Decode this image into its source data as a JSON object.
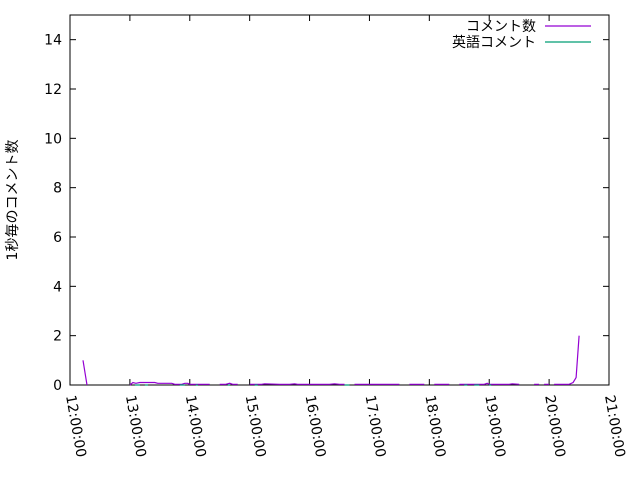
{
  "chart_data": {
    "type": "line",
    "title": "",
    "xlabel": "",
    "ylabel": "1秒毎のコメント数",
    "xlim": [
      "12:00:00",
      "21:00:00"
    ],
    "ylim": [
      0,
      15
    ],
    "xticks": [
      "12:00:00",
      "13:00:00",
      "14:00:00",
      "15:00:00",
      "16:00:00",
      "17:00:00",
      "18:00:00",
      "19:00:00",
      "20:00:00",
      "21:00:00"
    ],
    "yticks": [
      "0",
      "2",
      "4",
      "6",
      "8",
      "10",
      "12",
      "14"
    ],
    "grid": false,
    "legend": "top-right",
    "series": [
      {
        "name": "コメント数",
        "color": "#9400d3",
        "points": [
          [
            "12:13:00",
            1
          ],
          [
            "12:17:00",
            0
          ],
          null,
          [
            "13:00:00",
            0
          ],
          [
            "13:03:00",
            0.1
          ],
          [
            "13:06:00",
            0.07
          ],
          [
            "13:10:00",
            0.1
          ],
          [
            "13:25:00",
            0.1
          ],
          [
            "13:28:00",
            0.07
          ],
          [
            "13:42:00",
            0.07
          ],
          [
            "13:45:00",
            0.03
          ],
          [
            "13:52:00",
            0.03
          ],
          [
            "13:55:00",
            0.07
          ],
          [
            "13:58:00",
            0.07
          ],
          [
            "14:00:00",
            0.03
          ],
          [
            "14:20:00",
            0.03
          ],
          null,
          [
            "14:30:00",
            0.03
          ],
          [
            "14:36:00",
            0.03
          ],
          [
            "14:40:00",
            0.07
          ],
          [
            "14:43:00",
            0.03
          ],
          [
            "14:48:00",
            0.03
          ],
          null,
          [
            "15:00:00",
            0.03
          ],
          [
            "15:12:00",
            0.03
          ],
          [
            "15:15:00",
            0.05
          ],
          [
            "15:30:00",
            0.03
          ],
          [
            "15:40:00",
            0.03
          ],
          [
            "15:45:00",
            0.05
          ],
          [
            "15:48:00",
            0.03
          ],
          [
            "16:10:00",
            0.03
          ],
          [
            "16:20:00",
            0.03
          ],
          [
            "16:25:00",
            0.05
          ],
          [
            "16:30:00",
            0.03
          ],
          [
            "16:35:00",
            0.03
          ],
          null,
          [
            "16:45:00",
            0.03
          ],
          [
            "17:00:00",
            0.03
          ],
          [
            "17:10:00",
            0.03
          ],
          [
            "17:30:00",
            0.03
          ],
          null,
          [
            "17:40:00",
            0.03
          ],
          [
            "17:55:00",
            0.03
          ],
          null,
          [
            "18:05:00",
            0.03
          ],
          [
            "18:20:00",
            0.03
          ],
          null,
          [
            "18:30:00",
            0.03
          ],
          [
            "18:55:00",
            0.03
          ],
          [
            "18:58:00",
            0.07
          ],
          [
            "19:00:00",
            0.03
          ],
          [
            "19:05:00",
            0.03
          ],
          [
            "19:20:00",
            0.03
          ],
          [
            "19:23:00",
            0.05
          ],
          [
            "19:30:00",
            0.03
          ],
          null,
          [
            "19:45:00",
            0.03
          ],
          [
            "19:50:00",
            0.03
          ],
          null,
          [
            "19:55:00",
            0.03
          ],
          [
            "20:00:00",
            0.03
          ],
          null,
          [
            "20:05:00",
            0.03
          ],
          [
            "20:10:00",
            0.03
          ],
          [
            "20:20:00",
            0.03
          ],
          [
            "20:24:00",
            0.1
          ],
          [
            "20:27:00",
            0.3
          ],
          [
            "20:30:00",
            2
          ]
        ]
      },
      {
        "name": "英語コメント",
        "color": "#009e73",
        "points": [
          [
            "13:05:00",
            0
          ],
          [
            "13:10:00",
            0
          ],
          null,
          [
            "13:15:00",
            0
          ],
          [
            "13:18:00",
            0
          ],
          null,
          [
            "13:50:00",
            0
          ],
          [
            "13:55:00",
            0
          ],
          null,
          [
            "14:06:00",
            0
          ],
          [
            "14:08:00",
            0
          ],
          null,
          [
            "14:38:00",
            0
          ],
          [
            "14:40:00",
            0
          ],
          null,
          [
            "15:05:00",
            0
          ],
          [
            "15:08:00",
            0
          ],
          null,
          [
            "16:35:00",
            0
          ],
          [
            "16:40:00",
            0
          ],
          null,
          [
            "18:35:00",
            0
          ],
          [
            "18:38:00",
            0
          ],
          null,
          [
            "18:45:00",
            0
          ],
          [
            "18:50:00",
            0
          ],
          null,
          [
            "19:00:00",
            0
          ],
          [
            "19:02:00",
            0
          ]
        ]
      }
    ]
  }
}
